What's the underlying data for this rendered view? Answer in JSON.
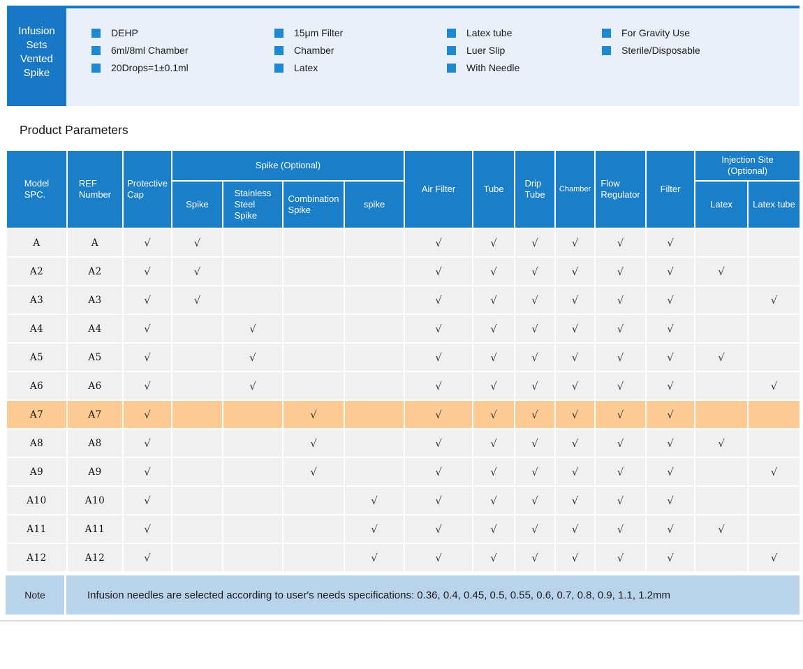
{
  "banner": {
    "title": "Infusion\nSets\nVented\nSpike",
    "feature_columns": [
      {
        "items": [
          "DEHP",
          "6ml/8ml Chamber",
          "20Drops=1±0.1ml"
        ]
      },
      {
        "items": [
          "15μm Filter",
          "Chamber",
          "Latex"
        ]
      },
      {
        "items": [
          "Latex tube",
          "Luer Slip",
          "With Needle"
        ]
      },
      {
        "items": [
          "For Gravity Use",
          "Sterile/Disposable"
        ]
      }
    ]
  },
  "section_title": "Product Parameters",
  "table": {
    "check_mark": "√",
    "headers": {
      "model": "Model\nSPC.",
      "ref": "REF\nNumber",
      "protective": "Protective\nCap",
      "spike_group": "Spike（Optional）",
      "spike": "Spike",
      "stainless": "Stainless\nSteel\nSpike",
      "combination": "Combination\nSpike",
      "spike_lower": "spike",
      "air_filter": "Air Filter",
      "tube": "Tube",
      "drip_tube": "Drip\nTube",
      "chamber": "Chamber",
      "flow_regulator": "Flow\nRegulator",
      "filter": "Filter",
      "injection_group": "Injection Site\n（Optional）",
      "latex": "Latex",
      "latex_tube": "Latex tube"
    },
    "check_columns": [
      "protective-cap",
      "spike",
      "stainless-steel-spike",
      "combination-spike",
      "spike-lower",
      "air-filter",
      "tube",
      "drip-tube",
      "chamber",
      "flow-regulator",
      "filter",
      "latex",
      "latex-tube"
    ],
    "rows": [
      {
        "model": "A",
        "ref": "A",
        "highlight": false,
        "checks": [
          1,
          1,
          0,
          0,
          0,
          1,
          1,
          1,
          1,
          1,
          1,
          0,
          0
        ]
      },
      {
        "model": "A2",
        "ref": "A2",
        "highlight": false,
        "checks": [
          1,
          1,
          0,
          0,
          0,
          1,
          1,
          1,
          1,
          1,
          1,
          1,
          0
        ]
      },
      {
        "model": "A3",
        "ref": "A3",
        "highlight": false,
        "checks": [
          1,
          1,
          0,
          0,
          0,
          1,
          1,
          1,
          1,
          1,
          1,
          0,
          1
        ]
      },
      {
        "model": "A4",
        "ref": "A4",
        "highlight": false,
        "checks": [
          1,
          0,
          1,
          0,
          0,
          1,
          1,
          1,
          1,
          1,
          1,
          0,
          0
        ]
      },
      {
        "model": "A5",
        "ref": "A5",
        "highlight": false,
        "checks": [
          1,
          0,
          1,
          0,
          0,
          1,
          1,
          1,
          1,
          1,
          1,
          1,
          0
        ]
      },
      {
        "model": "A6",
        "ref": "A6",
        "highlight": false,
        "checks": [
          1,
          0,
          1,
          0,
          0,
          1,
          1,
          1,
          1,
          1,
          1,
          0,
          1
        ]
      },
      {
        "model": "A7",
        "ref": "A7",
        "highlight": true,
        "checks": [
          1,
          0,
          0,
          1,
          0,
          1,
          1,
          1,
          1,
          1,
          1,
          0,
          0
        ]
      },
      {
        "model": "A8",
        "ref": "A8",
        "highlight": false,
        "checks": [
          1,
          0,
          0,
          1,
          0,
          1,
          1,
          1,
          1,
          1,
          1,
          1,
          0
        ]
      },
      {
        "model": "A9",
        "ref": "A9",
        "highlight": false,
        "checks": [
          1,
          0,
          0,
          1,
          0,
          1,
          1,
          1,
          1,
          1,
          1,
          0,
          1
        ]
      },
      {
        "model": "A10",
        "ref": "A10",
        "highlight": false,
        "checks": [
          1,
          0,
          0,
          0,
          1,
          1,
          1,
          1,
          1,
          1,
          1,
          0,
          0
        ]
      },
      {
        "model": "A11",
        "ref": "A11",
        "highlight": false,
        "checks": [
          1,
          0,
          0,
          0,
          1,
          1,
          1,
          1,
          1,
          1,
          1,
          1,
          0
        ]
      },
      {
        "model": "A12",
        "ref": "A12",
        "highlight": false,
        "checks": [
          1,
          0,
          0,
          0,
          1,
          1,
          1,
          1,
          1,
          1,
          1,
          0,
          1
        ]
      }
    ]
  },
  "note": {
    "label": "Note",
    "text": "Infusion needles are selected according to user's needs specifications：0.36、0.4、0.45、0.5、0.55、0.6、0.7、0.8、0.9、1.1、1.2mm"
  },
  "colors": {
    "accent_blue": "#1b7ec9",
    "panel_bg": "#e9f0f9",
    "row_gray": "#f0f0f0",
    "highlight_orange": "#fdca94",
    "note_bg": "#b9d4ea"
  }
}
